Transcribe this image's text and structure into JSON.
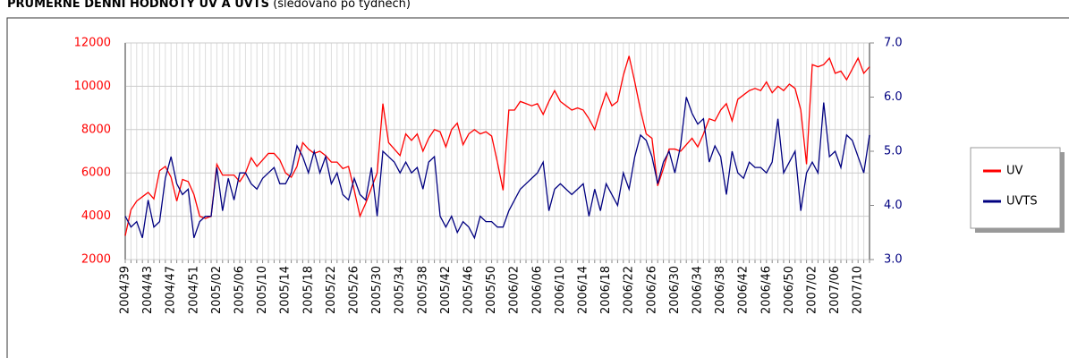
{
  "chart_data": {
    "type": "line",
    "title": "PRŮMĚRNÉ DENNÍ HODNOTY UV A UVTS",
    "subtitle": "(sledováno po týdnech)",
    "categories": [
      "2004/39",
      null,
      null,
      null,
      "2004/43",
      null,
      null,
      null,
      "2004/47",
      null,
      null,
      null,
      "2004/51",
      null,
      null,
      null,
      "2005/02",
      null,
      null,
      null,
      "2005/06",
      null,
      null,
      null,
      "2005/10",
      null,
      null,
      null,
      "2005/14",
      null,
      null,
      null,
      "2005/18",
      null,
      null,
      null,
      "2005/22",
      null,
      null,
      null,
      "2005/26",
      null,
      null,
      null,
      "2005/30",
      null,
      null,
      null,
      "2005/34",
      null,
      null,
      null,
      "2005/38",
      null,
      null,
      null,
      "2005/42",
      null,
      null,
      null,
      "2005/46",
      null,
      null,
      null,
      "2005/50",
      null,
      null,
      null,
      "2006/02",
      null,
      null,
      null,
      "2006/06",
      null,
      null,
      null,
      "2006/10",
      null,
      null,
      null,
      "2006/14",
      null,
      null,
      null,
      "2006/18",
      null,
      null,
      null,
      "2006/22",
      null,
      null,
      null,
      "2006/26",
      null,
      null,
      null,
      "2006/30",
      null,
      null,
      null,
      "2006/34",
      null,
      null,
      null,
      "2006/38",
      null,
      null,
      null,
      "2006/42",
      null,
      null,
      null,
      "2006/46",
      null,
      null,
      null,
      "2006/50",
      null,
      null,
      null,
      "2007/02",
      null,
      null,
      null,
      "2007/06",
      null,
      null,
      null,
      "2007/10",
      null,
      null
    ],
    "series": [
      {
        "name": "UV",
        "color": "#ff0000",
        "values": [
          3100,
          4300,
          4700,
          4900,
          5100,
          4800,
          6100,
          6300,
          5800,
          4700,
          5700,
          5600,
          5000,
          4000,
          3900,
          4000,
          6400,
          5900,
          5900,
          5900,
          5600,
          6000,
          6700,
          6300,
          6600,
          6900,
          6900,
          6600,
          6000,
          5800,
          6300,
          7400,
          7100,
          6900,
          7000,
          6800,
          6500,
          6500,
          6200,
          6300,
          5200,
          4000,
          4600,
          5300,
          6000,
          9200,
          7400,
          7100,
          6800,
          7800,
          7500,
          7800,
          7000,
          7600,
          8000,
          7900,
          7200,
          8000,
          8300,
          7300,
          7800,
          8000,
          7800,
          7900,
          7700,
          6500,
          5200,
          8900,
          8900,
          9300,
          9200,
          9100,
          9200,
          8700,
          9300,
          9800,
          9300,
          9100,
          8900,
          9000,
          8900,
          8500,
          8000,
          8900,
          9700,
          9100,
          9300,
          10500,
          11400,
          10200,
          8900,
          7800,
          7600,
          5400,
          6200,
          7100,
          7100,
          7000,
          7300,
          7600,
          7200,
          7800,
          8500,
          8400,
          8900,
          9200,
          8400,
          9400,
          9600,
          9800,
          9900,
          9800,
          10200,
          9700,
          10000,
          9800,
          10100,
          9900,
          8900,
          6400,
          11000,
          10900,
          11000,
          11300,
          10600,
          10700,
          10300,
          10800,
          11300,
          10600,
          10900
        ]
      },
      {
        "name": "UVTS",
        "color": "#000080",
        "axis": "y2",
        "values": [
          3.8,
          3.6,
          3.7,
          3.4,
          4.1,
          3.6,
          3.7,
          4.5,
          4.9,
          4.4,
          4.2,
          4.3,
          3.4,
          3.7,
          3.8,
          3.8,
          4.7,
          3.9,
          4.5,
          4.1,
          4.6,
          4.6,
          4.4,
          4.3,
          4.5,
          4.6,
          4.7,
          4.4,
          4.4,
          4.6,
          5.1,
          4.9,
          4.6,
          5.0,
          4.6,
          4.9,
          4.4,
          4.6,
          4.2,
          4.1,
          4.5,
          4.2,
          4.1,
          4.7,
          3.8,
          5.0,
          4.9,
          4.8,
          4.6,
          4.8,
          4.6,
          4.7,
          4.3,
          4.8,
          4.9,
          3.8,
          3.6,
          3.8,
          3.5,
          3.7,
          3.6,
          3.4,
          3.8,
          3.7,
          3.7,
          3.6,
          3.6,
          3.9,
          4.1,
          4.3,
          4.4,
          4.5,
          4.6,
          4.8,
          3.9,
          4.3,
          4.4,
          4.3,
          4.2,
          4.3,
          4.4,
          3.8,
          4.3,
          3.9,
          4.4,
          4.2,
          4.0,
          4.6,
          4.3,
          4.9,
          5.3,
          5.2,
          4.9,
          4.4,
          4.8,
          5.0,
          4.6,
          5.1,
          6.0,
          5.7,
          5.5,
          5.6,
          4.8,
          5.1,
          4.9,
          4.2,
          5.0,
          4.6,
          4.5,
          4.8,
          4.7,
          4.7,
          4.6,
          4.8,
          5.6,
          4.6,
          4.8,
          5.0,
          3.9,
          4.6,
          4.8,
          4.6,
          5.9,
          4.9,
          5.0,
          4.7,
          5.3,
          5.2,
          4.9,
          4.6,
          5.3
        ]
      }
    ],
    "ylim": [
      2000,
      12000
    ],
    "yticks": [
      2000,
      4000,
      6000,
      8000,
      10000,
      12000
    ],
    "y2lim": [
      3,
      7
    ],
    "y2ticks": [
      {
        "value": 3,
        "label": "3.0"
      },
      {
        "value": 4,
        "label": "4.0"
      },
      {
        "value": 5,
        "label": "5.0"
      },
      {
        "value": 6,
        "label": "6.0"
      },
      {
        "value": 7,
        "label": "7.0"
      }
    ],
    "grid": true,
    "legend": "right"
  }
}
